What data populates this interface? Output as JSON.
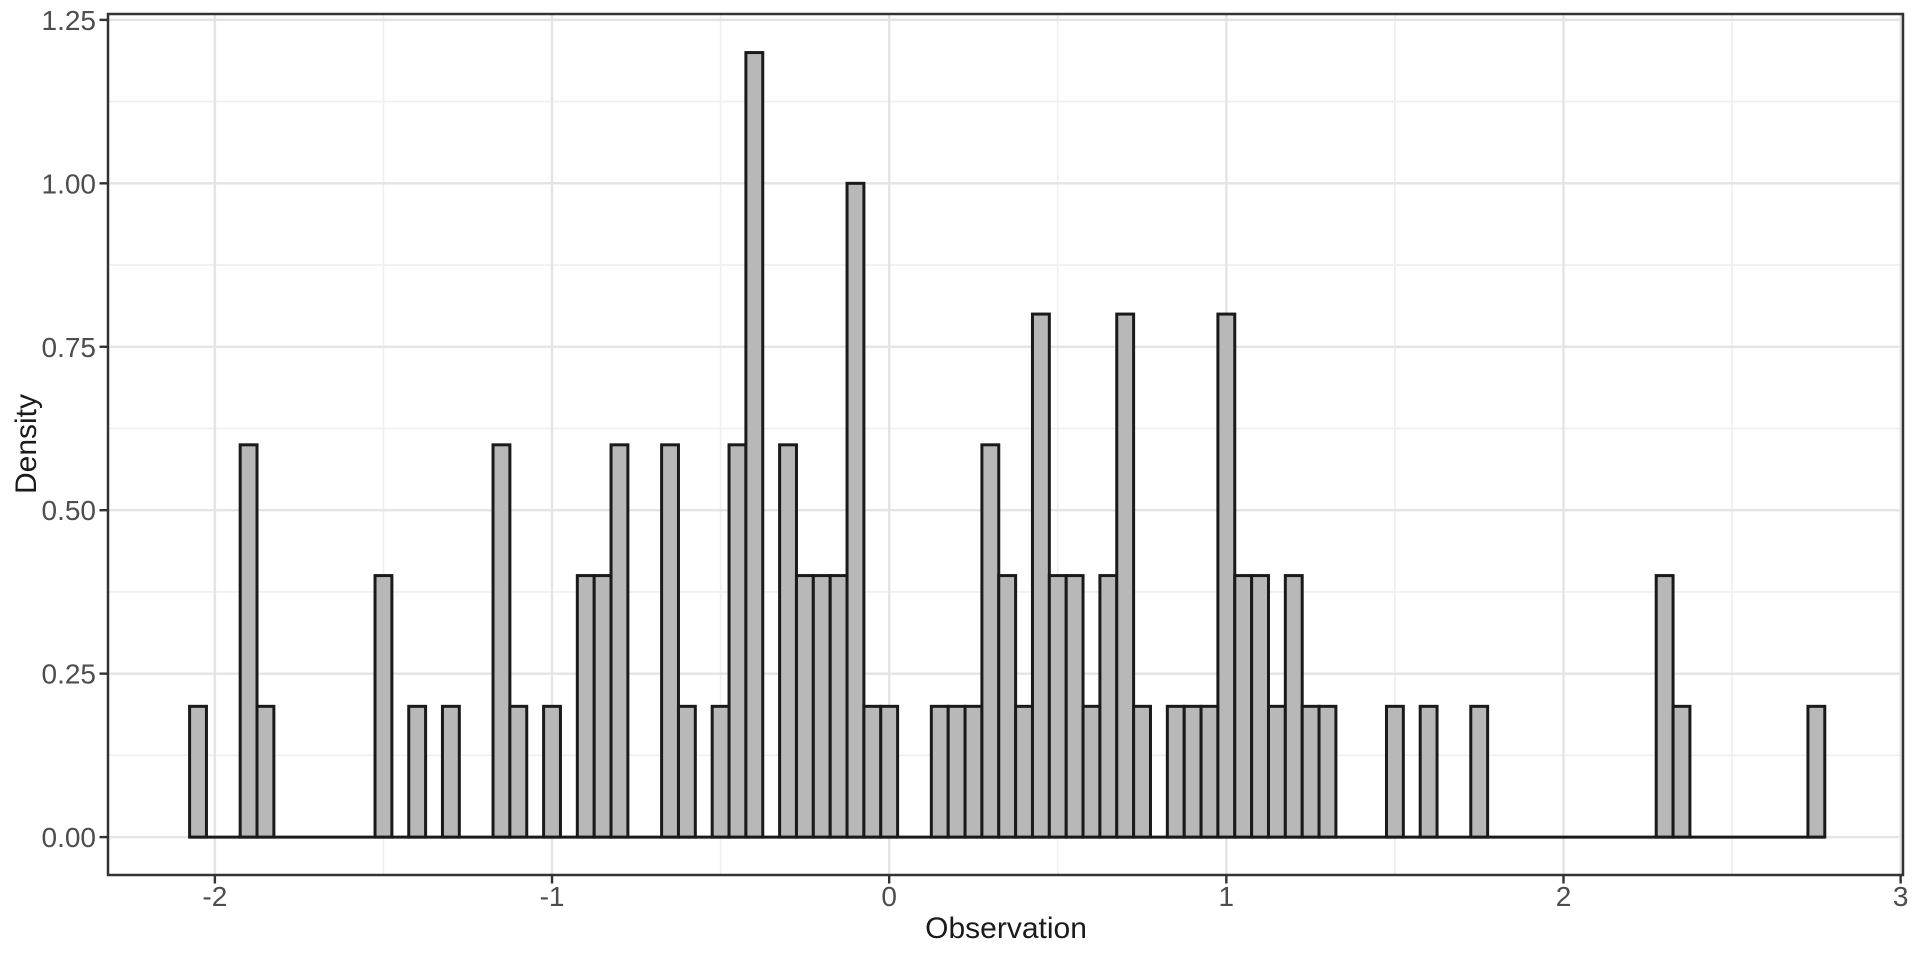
{
  "axes": {
    "x": {
      "label": "Observation",
      "range": [
        -2.317,
        3.007
      ],
      "ticks": [
        {
          "v": -2,
          "label": "-2"
        },
        {
          "v": -1,
          "label": "-1"
        },
        {
          "v": 0,
          "label": "0"
        },
        {
          "v": 1,
          "label": "1"
        },
        {
          "v": 2,
          "label": "2"
        },
        {
          "v": 3,
          "label": "3"
        }
      ],
      "minor": [
        -1.5,
        -0.5,
        0.5,
        1.5,
        2.5
      ]
    },
    "y": {
      "label": "Density",
      "range": [
        -0.058,
        1.259
      ],
      "ticks": [
        {
          "v": 0,
          "label": "0.00"
        },
        {
          "v": 0.25,
          "label": "0.25"
        },
        {
          "v": 0.5,
          "label": "0.50"
        },
        {
          "v": 0.75,
          "label": "0.75"
        },
        {
          "v": 1,
          "label": "1.00"
        },
        {
          "v": 1.25,
          "label": "1.25"
        }
      ],
      "minor": [
        0.125,
        0.375,
        0.625,
        0.875,
        1.125
      ]
    }
  },
  "chart_data": {
    "type": "bar",
    "subtype": "histogram",
    "title": "",
    "xlabel": "Observation",
    "ylabel": "Density",
    "binwidth": 0.05,
    "xlim": [
      -2.317,
      3.007
    ],
    "ylim": [
      -0.058,
      1.259
    ],
    "grid": "on",
    "legend": "none",
    "baseline_extent": [
      -2.075,
      2.775
    ],
    "bins": [
      {
        "center": -2.05,
        "density": 0.2
      },
      {
        "center": -1.9,
        "density": 0.6
      },
      {
        "center": -1.85,
        "density": 0.2
      },
      {
        "center": -1.5,
        "density": 0.4
      },
      {
        "center": -1.4,
        "density": 0.2
      },
      {
        "center": -1.3,
        "density": 0.2
      },
      {
        "center": -1.15,
        "density": 0.6
      },
      {
        "center": -1.1,
        "density": 0.2
      },
      {
        "center": -1.0,
        "density": 0.2
      },
      {
        "center": -0.9,
        "density": 0.4
      },
      {
        "center": -0.85,
        "density": 0.4
      },
      {
        "center": -0.8,
        "density": 0.6
      },
      {
        "center": -0.65,
        "density": 0.6
      },
      {
        "center": -0.6,
        "density": 0.2
      },
      {
        "center": -0.5,
        "density": 0.2
      },
      {
        "center": -0.45,
        "density": 0.6
      },
      {
        "center": -0.4,
        "density": 1.2
      },
      {
        "center": -0.3,
        "density": 0.6
      },
      {
        "center": -0.25,
        "density": 0.4
      },
      {
        "center": -0.2,
        "density": 0.4
      },
      {
        "center": -0.15,
        "density": 0.4
      },
      {
        "center": -0.1,
        "density": 1.0
      },
      {
        "center": -0.05,
        "density": 0.2
      },
      {
        "center": 0.0,
        "density": 0.2
      },
      {
        "center": 0.15,
        "density": 0.2
      },
      {
        "center": 0.2,
        "density": 0.2
      },
      {
        "center": 0.25,
        "density": 0.2
      },
      {
        "center": 0.3,
        "density": 0.6
      },
      {
        "center": 0.35,
        "density": 0.4
      },
      {
        "center": 0.4,
        "density": 0.2
      },
      {
        "center": 0.45,
        "density": 0.8
      },
      {
        "center": 0.5,
        "density": 0.4
      },
      {
        "center": 0.55,
        "density": 0.4
      },
      {
        "center": 0.6,
        "density": 0.2
      },
      {
        "center": 0.65,
        "density": 0.4
      },
      {
        "center": 0.7,
        "density": 0.8
      },
      {
        "center": 0.75,
        "density": 0.2
      },
      {
        "center": 0.85,
        "density": 0.2
      },
      {
        "center": 0.9,
        "density": 0.2
      },
      {
        "center": 0.95,
        "density": 0.2
      },
      {
        "center": 1.0,
        "density": 0.8
      },
      {
        "center": 1.05,
        "density": 0.4
      },
      {
        "center": 1.1,
        "density": 0.4
      },
      {
        "center": 1.15,
        "density": 0.2
      },
      {
        "center": 1.2,
        "density": 0.4
      },
      {
        "center": 1.25,
        "density": 0.2
      },
      {
        "center": 1.3,
        "density": 0.2
      },
      {
        "center": 1.5,
        "density": 0.2
      },
      {
        "center": 1.6,
        "density": 0.2
      },
      {
        "center": 1.75,
        "density": 0.2
      },
      {
        "center": 2.3,
        "density": 0.4
      },
      {
        "center": 2.35,
        "density": 0.2
      },
      {
        "center": 2.75,
        "density": 0.2
      }
    ]
  },
  "colors": {
    "background": "#ffffff",
    "panel_background": "#ffffff",
    "bar_fill": "#b8b8b8",
    "bar_stroke": "#1a1a1a",
    "grid_major": "#e4e4e4",
    "grid_minor": "#efefef",
    "panel_border": "#333333",
    "tick_color": "#333333",
    "tick_label_color": "#4d4d4d",
    "axis_title_color": "#1a1a1a"
  }
}
